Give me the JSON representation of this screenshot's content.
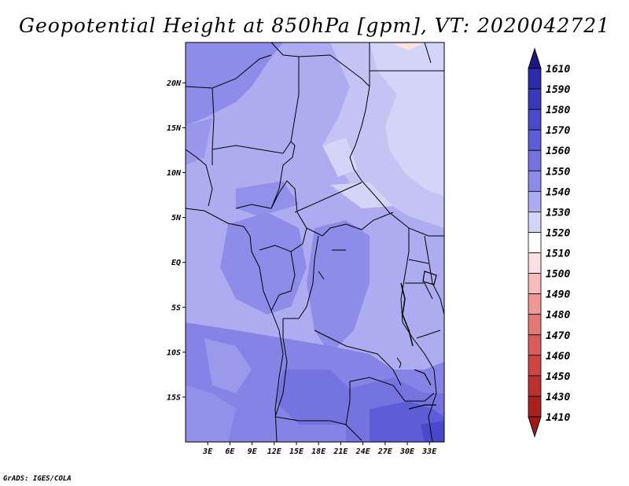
{
  "title": "Geopotential Height at 850hPa [gpm], VT: 2020042721",
  "credit": "GrADS: IGES/COLA",
  "map": {
    "lon_range": [
      0,
      35
    ],
    "lat_range": [
      -20,
      24.5
    ],
    "lat_ticks": [
      {
        "value": 20,
        "label": "20N"
      },
      {
        "value": 15,
        "label": "15N"
      },
      {
        "value": 10,
        "label": "10N"
      },
      {
        "value": 5,
        "label": "5N"
      },
      {
        "value": 0,
        "label": "EQ"
      },
      {
        "value": -5,
        "label": "5S"
      },
      {
        "value": -10,
        "label": "10S"
      },
      {
        "value": -15,
        "label": "15S"
      }
    ],
    "lon_ticks": [
      {
        "value": 3,
        "label": "3E"
      },
      {
        "value": 6,
        "label": "6E"
      },
      {
        "value": 9,
        "label": "9E"
      },
      {
        "value": 12,
        "label": "12E"
      },
      {
        "value": 15,
        "label": "15E"
      },
      {
        "value": 18,
        "label": "18E"
      },
      {
        "value": 21,
        "label": "21E"
      },
      {
        "value": 24,
        "label": "24E"
      },
      {
        "value": 27,
        "label": "27E"
      },
      {
        "value": 30,
        "label": "30E"
      },
      {
        "value": 33,
        "label": "33E"
      }
    ]
  },
  "colorbar": {
    "levels": [
      {
        "label": "1610",
        "color": "#1e1a8c"
      },
      {
        "label": "1590",
        "color": "#2c2aa6"
      },
      {
        "label": "1580",
        "color": "#3a38bb"
      },
      {
        "label": "1570",
        "color": "#4a48cb"
      },
      {
        "label": "1560",
        "color": "#5e5cd6"
      },
      {
        "label": "1550",
        "color": "#7473df"
      },
      {
        "label": "1540",
        "color": "#8d8ce8"
      },
      {
        "label": "1530",
        "color": "#adacf0"
      },
      {
        "label": "1520",
        "color": "#d4d4f8"
      },
      {
        "label": "1510",
        "color": "#ffffff"
      },
      {
        "label": "1500",
        "color": "#fde0e0"
      },
      {
        "label": "1490",
        "color": "#f6bcbc"
      },
      {
        "label": "1480",
        "color": "#ee9898"
      },
      {
        "label": "1470",
        "color": "#e47878"
      },
      {
        "label": "1460",
        "color": "#d85c5c"
      },
      {
        "label": "1450",
        "color": "#cc4444"
      },
      {
        "label": "1430",
        "color": "#bb3030"
      },
      {
        "label": "1410",
        "color": "#a82020"
      }
    ],
    "top_cap_color": "#1a1780",
    "bottom_cap_color": "#a01818"
  }
}
